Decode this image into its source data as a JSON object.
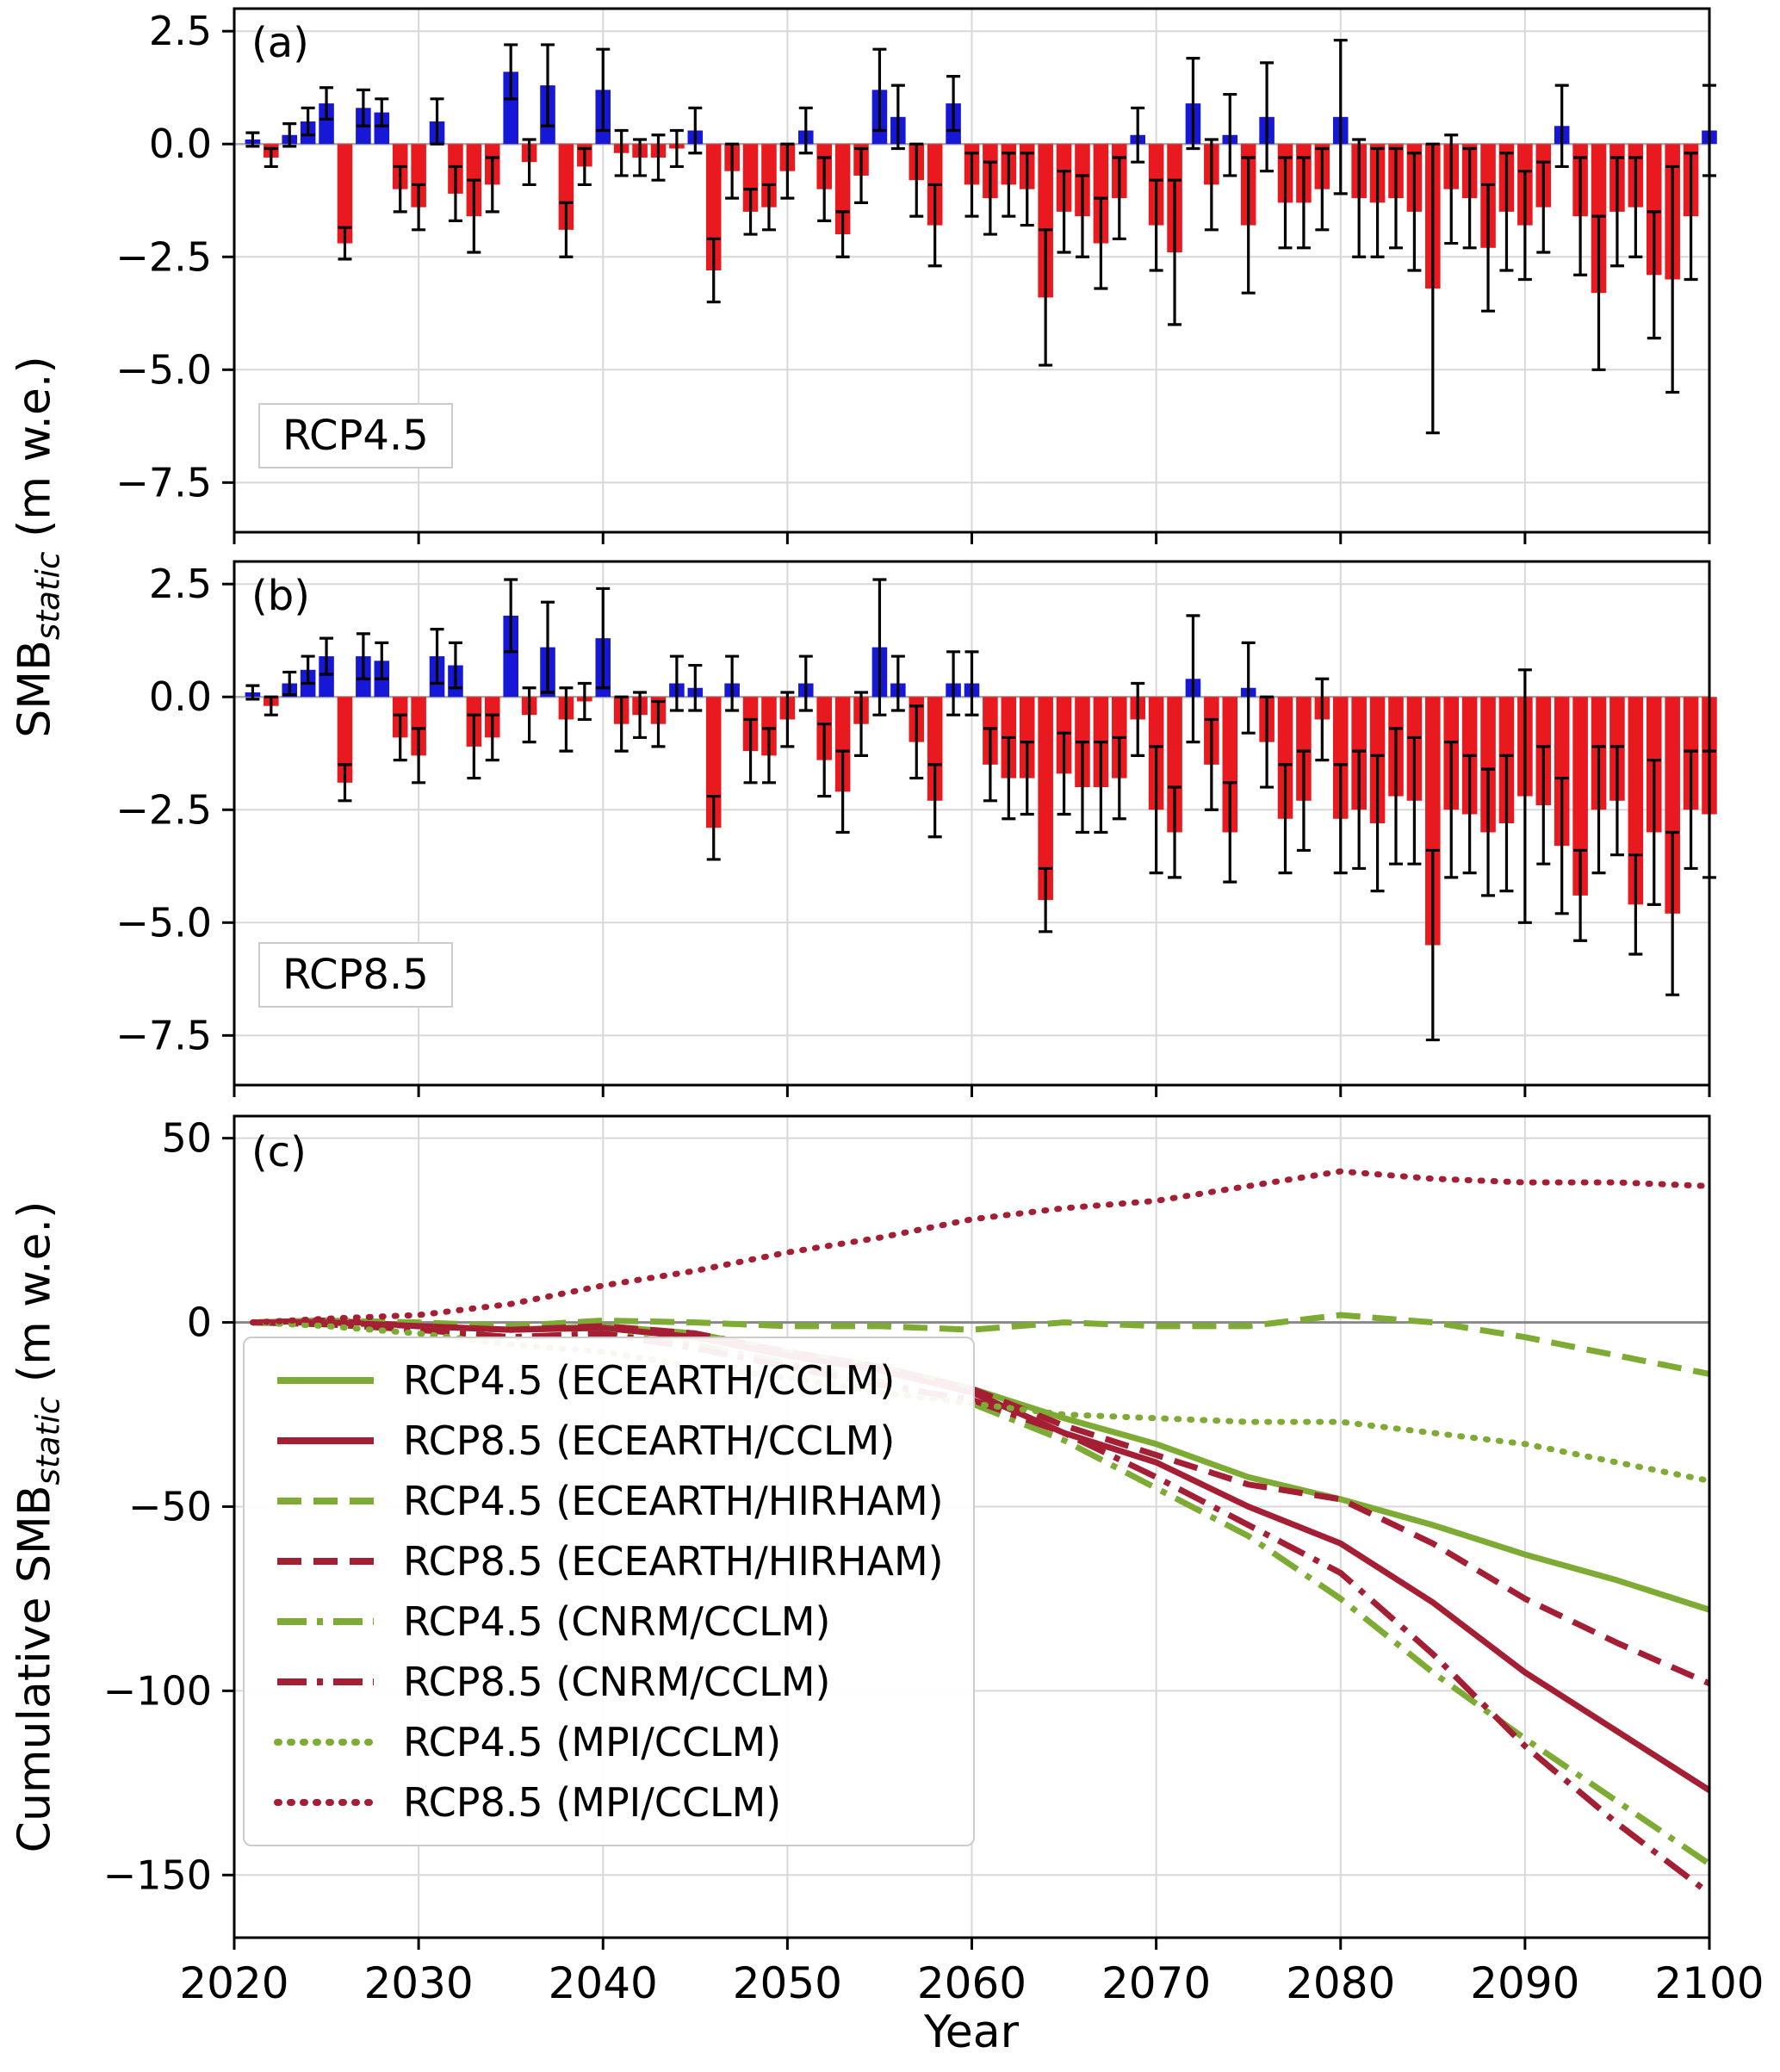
{
  "figure": {
    "xlabel": "Year",
    "ylabel_ab": {
      "prefix": "SMB",
      "sub": "static",
      "suffix": " (m w.e.)"
    },
    "ylabel_c": {
      "prefix": "Cumulative SMB",
      "sub": "static",
      "suffix": " (m w.e.)"
    },
    "x_ticks": [
      2020,
      2030,
      2040,
      2050,
      2060,
      2070,
      2080,
      2090,
      2100
    ],
    "colors": {
      "positive_bar": "#1717d6",
      "negative_bar": "#e8191f",
      "error_bar": "#000000",
      "grid": "#d8d8d8",
      "zero_line": "#888888",
      "rcp45_line": "#7dab34",
      "rcp85_line": "#a41e34"
    }
  },
  "chart_data": [
    {
      "type": "bar",
      "panel": "a",
      "label": "(a)",
      "scenario": "RCP4.5",
      "ylabel": "SMB static (m w.e.)",
      "ylim": [
        -8.6,
        3.0
      ],
      "yticks": [
        2.5,
        0.0,
        -2.5,
        -5.0,
        -7.5
      ],
      "ytick_labels": [
        "2.5",
        "0.0",
        "−2.5",
        "−5.0",
        "−7.5"
      ],
      "grid": true,
      "years": [
        2021,
        2022,
        2023,
        2024,
        2025,
        2026,
        2027,
        2028,
        2029,
        2030,
        2031,
        2032,
        2033,
        2034,
        2035,
        2036,
        2037,
        2038,
        2039,
        2040,
        2041,
        2042,
        2043,
        2044,
        2045,
        2046,
        2047,
        2048,
        2049,
        2050,
        2051,
        2052,
        2053,
        2054,
        2055,
        2056,
        2057,
        2058,
        2059,
        2060,
        2061,
        2062,
        2063,
        2064,
        2065,
        2066,
        2067,
        2068,
        2069,
        2070,
        2071,
        2072,
        2073,
        2074,
        2075,
        2076,
        2077,
        2078,
        2079,
        2080,
        2081,
        2082,
        2083,
        2084,
        2085,
        2086,
        2087,
        2088,
        2089,
        2090,
        2091,
        2092,
        2093,
        2094,
        2095,
        2096,
        2097,
        2098,
        2099,
        2100
      ],
      "values": [
        0.1,
        -0.3,
        0.2,
        0.5,
        0.9,
        -2.2,
        0.8,
        0.7,
        -1.0,
        -1.4,
        0.5,
        -1.1,
        -1.6,
        -0.9,
        1.6,
        -0.4,
        1.3,
        -1.9,
        -0.5,
        1.2,
        -0.2,
        -0.3,
        -0.3,
        -0.1,
        0.3,
        -2.8,
        -0.6,
        -1.5,
        -1.4,
        -0.6,
        0.3,
        -1.0,
        -2.0,
        -0.7,
        1.2,
        0.6,
        -0.8,
        -1.8,
        0.9,
        -0.9,
        -1.2,
        -0.9,
        -1.0,
        -3.4,
        -1.5,
        -1.6,
        -2.2,
        -1.2,
        0.2,
        -1.8,
        -2.4,
        0.9,
        -0.9,
        0.2,
        -1.8,
        0.6,
        -1.3,
        -1.3,
        -1.0,
        0.6,
        -1.2,
        -1.3,
        -1.2,
        -1.5,
        -3.2,
        -1.0,
        -1.2,
        -2.3,
        -1.5,
        -1.8,
        -1.4,
        0.4,
        -1.6,
        -3.3,
        -1.5,
        -1.4,
        -2.9,
        -3.0,
        -1.6,
        0.3
      ],
      "errors": [
        0.15,
        0.2,
        0.25,
        0.3,
        0.35,
        0.35,
        0.4,
        0.3,
        0.5,
        0.5,
        0.5,
        0.6,
        0.8,
        0.6,
        0.6,
        0.5,
        0.9,
        0.6,
        0.4,
        0.9,
        0.5,
        0.4,
        0.5,
        0.4,
        0.5,
        0.7,
        0.6,
        0.5,
        0.5,
        0.6,
        0.5,
        0.7,
        0.5,
        0.6,
        0.9,
        0.7,
        0.8,
        0.9,
        0.6,
        0.7,
        0.8,
        0.7,
        0.8,
        1.5,
        0.9,
        0.9,
        1.0,
        0.9,
        0.6,
        1.0,
        1.6,
        1.0,
        1.0,
        0.9,
        1.5,
        1.2,
        1.0,
        1.0,
        0.9,
        1.7,
        1.3,
        1.2,
        1.1,
        1.3,
        3.2,
        1.2,
        1.1,
        1.4,
        1.3,
        1.2,
        1.0,
        0.9,
        1.3,
        1.7,
        1.2,
        1.1,
        1.4,
        2.5,
        1.4,
        1.0
      ]
    },
    {
      "type": "bar",
      "panel": "b",
      "label": "(b)",
      "scenario": "RCP8.5",
      "ylabel": "SMB static (m w.e.)",
      "ylim": [
        -8.6,
        3.0
      ],
      "yticks": [
        2.5,
        0.0,
        -2.5,
        -5.0,
        -7.5
      ],
      "ytick_labels": [
        "2.5",
        "0.0",
        "−2.5",
        "−5.0",
        "−7.5"
      ],
      "grid": true,
      "years": [
        2021,
        2022,
        2023,
        2024,
        2025,
        2026,
        2027,
        2028,
        2029,
        2030,
        2031,
        2032,
        2033,
        2034,
        2035,
        2036,
        2037,
        2038,
        2039,
        2040,
        2041,
        2042,
        2043,
        2044,
        2045,
        2046,
        2047,
        2048,
        2049,
        2050,
        2051,
        2052,
        2053,
        2054,
        2055,
        2056,
        2057,
        2058,
        2059,
        2060,
        2061,
        2062,
        2063,
        2064,
        2065,
        2066,
        2067,
        2068,
        2069,
        2070,
        2071,
        2072,
        2073,
        2074,
        2075,
        2076,
        2077,
        2078,
        2079,
        2080,
        2081,
        2082,
        2083,
        2084,
        2085,
        2086,
        2087,
        2088,
        2089,
        2090,
        2091,
        2092,
        2093,
        2094,
        2095,
        2096,
        2097,
        2098,
        2099,
        2100
      ],
      "values": [
        0.1,
        -0.2,
        0.3,
        0.6,
        0.9,
        -1.9,
        0.9,
        0.8,
        -0.9,
        -1.3,
        0.9,
        0.7,
        -1.1,
        -0.9,
        1.8,
        -0.4,
        1.1,
        -0.5,
        -0.1,
        1.3,
        -0.6,
        -0.4,
        -0.6,
        0.3,
        0.2,
        -2.9,
        0.3,
        -1.2,
        -1.3,
        -0.5,
        0.3,
        -1.4,
        -2.1,
        -0.6,
        1.1,
        0.3,
        -1.0,
        -2.3,
        0.3,
        0.3,
        -1.5,
        -1.8,
        -1.8,
        -4.5,
        -1.7,
        -2.0,
        -2.0,
        -1.8,
        -0.5,
        -2.5,
        -3.0,
        0.4,
        -1.5,
        -3.0,
        0.2,
        -1.0,
        -2.7,
        -2.3,
        -0.5,
        -2.7,
        -2.5,
        -2.8,
        -2.2,
        -2.3,
        -5.5,
        -2.5,
        -2.6,
        -3.0,
        -2.8,
        -2.2,
        -2.4,
        -3.3,
        -4.4,
        -2.5,
        -2.3,
        -4.6,
        -3.0,
        -4.8,
        -2.5,
        -2.6
      ],
      "errors": [
        0.15,
        0.2,
        0.25,
        0.3,
        0.4,
        0.4,
        0.5,
        0.4,
        0.5,
        0.6,
        0.6,
        0.5,
        0.7,
        0.5,
        0.8,
        0.6,
        1.0,
        0.7,
        0.4,
        1.1,
        0.6,
        0.5,
        0.5,
        0.6,
        0.5,
        0.7,
        0.6,
        0.7,
        0.6,
        0.6,
        0.6,
        0.8,
        0.9,
        0.7,
        1.5,
        0.6,
        0.8,
        0.8,
        0.7,
        0.7,
        0.8,
        0.9,
        0.8,
        0.7,
        0.9,
        1.0,
        1.0,
        0.9,
        0.8,
        1.4,
        1.0,
        1.4,
        1.0,
        1.1,
        1.0,
        1.0,
        1.2,
        1.1,
        0.9,
        1.2,
        1.3,
        1.5,
        1.5,
        1.4,
        2.1,
        1.5,
        1.3,
        1.4,
        1.5,
        2.8,
        1.3,
        1.5,
        1.0,
        1.4,
        1.2,
        1.1,
        1.6,
        1.8,
        1.3,
        1.4
      ]
    },
    {
      "type": "line",
      "panel": "c",
      "label": "(c)",
      "ylabel": "Cumulative SMB static (m w.e.)",
      "xlabel": "Year",
      "ylim": [
        -167,
        56
      ],
      "yticks": [
        50,
        0,
        -50,
        -100,
        -150
      ],
      "ytick_labels": [
        "50",
        "0",
        "−50",
        "−100",
        "−150"
      ],
      "grid": true,
      "legend_position": "lower left",
      "x": [
        2021,
        2025,
        2030,
        2035,
        2040,
        2045,
        2050,
        2055,
        2060,
        2065,
        2070,
        2075,
        2080,
        2085,
        2090,
        2095,
        2100
      ],
      "series": [
        {
          "name": "RCP4.5 (ECEARTH/CCLM)",
          "color": "#7dab34",
          "dash": "solid",
          "y": [
            0,
            0.5,
            -1,
            -2,
            -1,
            -3,
            -8,
            -12,
            -18,
            -26,
            -33,
            -42,
            -48,
            -55,
            -63,
            -70,
            -78
          ]
        },
        {
          "name": "RCP8.5 (ECEARTH/CCLM)",
          "color": "#a41e34",
          "dash": "solid",
          "y": [
            0,
            0.5,
            -1,
            -2,
            -1.5,
            -4,
            -9,
            -13,
            -19,
            -30,
            -38,
            -50,
            -60,
            -76,
            -95,
            -111,
            -127
          ]
        },
        {
          "name": "RCP4.5 (ECEARTH/HIRHAM)",
          "color": "#7dab34",
          "dash": "dashed",
          "y": [
            0,
            0.5,
            0,
            -1,
            0.5,
            0,
            -1,
            -1,
            -2,
            0,
            -1,
            -1,
            2,
            0,
            -4,
            -9,
            -14
          ]
        },
        {
          "name": "RCP8.5 (ECEARTH/HIRHAM)",
          "color": "#a41e34",
          "dash": "dashed",
          "y": [
            0,
            0,
            -1,
            -2,
            -1,
            -3,
            -8,
            -12,
            -18,
            -28,
            -36,
            -44,
            -48,
            -60,
            -75,
            -87,
            -98
          ]
        },
        {
          "name": "RCP4.5 (CNRM/CCLM)",
          "color": "#7dab34",
          "dash": "dashdot",
          "y": [
            0,
            -0.5,
            -2,
            -4,
            -3,
            -6,
            -11,
            -16,
            -22,
            -32,
            -45,
            -58,
            -75,
            -95,
            -113,
            -130,
            -147
          ]
        },
        {
          "name": "RCP8.5 (CNRM/CCLM)",
          "color": "#a41e34",
          "dash": "dashdot",
          "y": [
            0,
            -0.5,
            -2,
            -4,
            -3,
            -7,
            -12,
            -17,
            -21,
            -30,
            -42,
            -55,
            -68,
            -90,
            -115,
            -136,
            -155
          ]
        },
        {
          "name": "RCP4.5 (MPI/CCLM)",
          "color": "#7dab34",
          "dash": "dotted",
          "y": [
            0,
            -1,
            -3,
            -6,
            -8,
            -12,
            -15,
            -19,
            -22,
            -25,
            -26,
            -27,
            -27,
            -30,
            -33,
            -38,
            -43
          ]
        },
        {
          "name": "RCP8.5 (MPI/CCLM)",
          "color": "#a41e34",
          "dash": "dotted",
          "y": [
            0,
            1,
            2,
            5,
            10,
            14,
            19,
            23,
            28,
            31,
            33,
            37,
            41,
            39,
            38,
            38,
            37
          ]
        }
      ]
    }
  ]
}
